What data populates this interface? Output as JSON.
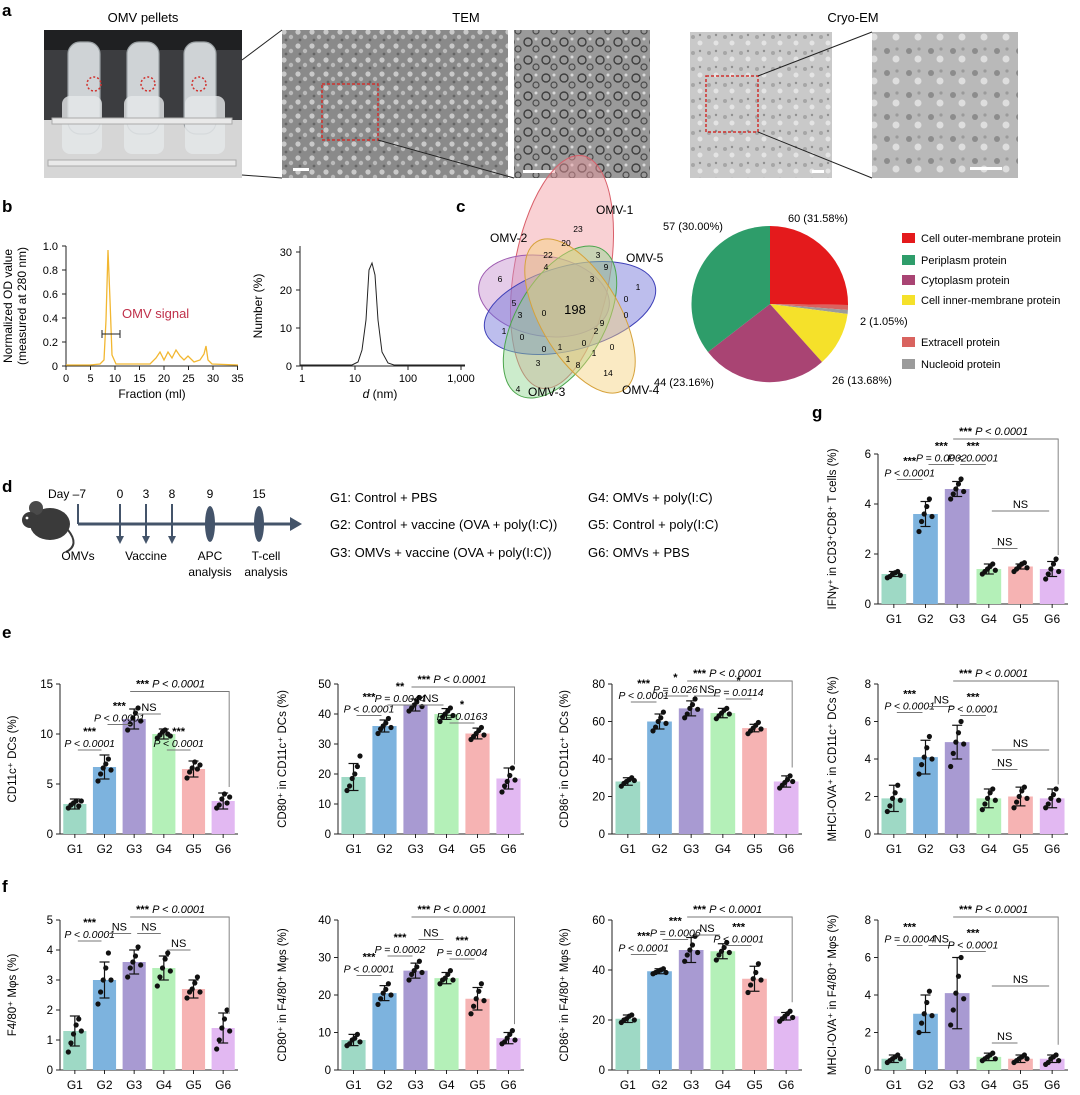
{
  "panel_letters": [
    "a",
    "b",
    "c",
    "d",
    "e",
    "f",
    "g"
  ],
  "panel_a": {
    "titles": [
      "OMV pellets",
      "TEM",
      "Cryo-EM"
    ]
  },
  "panel_b": {
    "left": {
      "ylabel1": "Normalized OD value",
      "ylabel2": "(measured at 280 nm)",
      "xlabel": "Fraction (ml)",
      "yticks": [
        "0",
        "0.2",
        "0.4",
        "0.6",
        "0.8",
        "1.0"
      ],
      "xticks": [
        "0",
        "5",
        "10",
        "15",
        "20",
        "25",
        "30",
        "35"
      ],
      "annotation": "OMV signal"
    },
    "right": {
      "ylabel": "Number (%)",
      "xlabel_var": "d",
      "xlabel_unit": " (nm)",
      "yticks": [
        "0",
        "10",
        "20",
        "30"
      ],
      "xticks": [
        "1",
        "10",
        "100",
        "1,000"
      ]
    }
  },
  "panel_c": {
    "venn": {
      "sets": [
        "OMV-1",
        "OMV-2",
        "OMV-3",
        "OMV-4",
        "OMV-5"
      ],
      "core": "198",
      "numbers": [
        "23",
        "6",
        "4",
        "14",
        "1",
        "20",
        "22",
        "4",
        "3",
        "9",
        "3",
        "0",
        "5",
        "3",
        "0",
        "1",
        "0",
        "3",
        "1",
        "8",
        "0",
        "2",
        "9",
        "0",
        "0",
        "1",
        "0",
        "1"
      ]
    },
    "pie_labels": [
      "60 (31.58%)",
      "57 (30.00%)",
      "44 (23.16%)",
      "26 (13.68%)",
      "2 (1.05%)"
    ],
    "legend": [
      {
        "label": "Cell outer-membrane protein",
        "color": "#e41a1c"
      },
      {
        "label": "Periplasm protein",
        "color": "#2e9d6a"
      },
      {
        "label": "Cytoplasm protein",
        "color": "#a94473"
      },
      {
        "label": "Cell inner-membrane protein",
        "color": "#f5e12a"
      },
      {
        "label": "Extracell protein",
        "color": "#d9635f"
      },
      {
        "label": "Nucleoid protein",
        "color": "#9b9b9b"
      }
    ]
  },
  "panel_d": {
    "timeline_days": [
      "Day –7",
      "0",
      "3",
      "8",
      "9",
      "15"
    ],
    "timeline_labels": [
      "OMVs",
      "Vaccine",
      "APC",
      "analysis",
      "T-cell",
      "analysis"
    ],
    "groups": [
      "G1: Control + PBS",
      "G2: Control + vaccine (OVA + poly(I:C))",
      "G3: OMVs + vaccine (OVA + poly(I:C))",
      "G4: OMVs + poly(I:C)",
      "G5: Control + poly(I:C)",
      "G6: OMVs + PBS"
    ]
  },
  "chart_data": [
    {
      "id": "e1",
      "type": "bar",
      "categories": [
        "G1",
        "G2",
        "G3",
        "G4",
        "G5",
        "G6"
      ],
      "values": [
        3.0,
        6.7,
        11.5,
        10.0,
        6.5,
        3.3
      ],
      "errors": [
        0.5,
        1.2,
        1.0,
        0.5,
        0.8,
        0.8
      ],
      "points": [
        [
          2.6,
          2.9,
          3.1,
          3.3,
          2.8,
          3.3
        ],
        [
          5.3,
          6.0,
          6.6,
          7.0,
          7.5,
          6.4
        ],
        [
          10.4,
          11.0,
          11.6,
          12.1,
          12.6,
          11.3
        ],
        [
          9.6,
          9.9,
          10.2,
          10.4,
          10.0,
          9.8
        ],
        [
          5.6,
          6.2,
          6.6,
          7.2,
          6.5,
          6.9
        ],
        [
          2.6,
          2.9,
          3.5,
          4.0,
          3.1,
          3.7
        ]
      ],
      "ylabel": "CD11c⁺ DCs (%)",
      "ylim": [
        0,
        15
      ],
      "yticks": [
        "0",
        "5",
        "10",
        "15"
      ],
      "annotations": [
        "***",
        "P < 0.0001",
        "***",
        "P < 0.0001",
        "NS",
        "***",
        "P < 0.0001",
        "***",
        "P < 0.0001"
      ]
    },
    {
      "id": "e2",
      "type": "bar",
      "categories": [
        "G1",
        "G2",
        "G3",
        "G4",
        "G5",
        "G6"
      ],
      "values": [
        19.0,
        36.0,
        43.0,
        40.0,
        33.5,
        18.5
      ],
      "errors": [
        4.5,
        2.0,
        2.0,
        1.8,
        1.8,
        3.5
      ],
      "points": [
        [
          14.5,
          16.0,
          18.5,
          20.0,
          22.5,
          26.0
        ],
        [
          33.5,
          35.0,
          36.0,
          37.0,
          38.5,
          35.5
        ],
        [
          41.0,
          42.0,
          43.0,
          44.0,
          45.5,
          42.5
        ],
        [
          37.5,
          39.0,
          40.0,
          41.0,
          42.0,
          39.5
        ],
        [
          31.5,
          32.5,
          33.5,
          34.5,
          35.5,
          33.0
        ],
        [
          14.0,
          16.0,
          17.5,
          19.5,
          22.0,
          18.0
        ]
      ],
      "ylabel": "CD80⁺ in CD11c⁺ DCs (%)",
      "ylim": [
        0,
        50
      ],
      "yticks": [
        "0",
        "10",
        "20",
        "30",
        "40",
        "50"
      ],
      "annotations": [
        "***",
        "P < 0.0001",
        "**",
        "P = 0.0044",
        "NS",
        "*",
        "P = 0.0163",
        "***",
        "P < 0.0001"
      ]
    },
    {
      "id": "e3",
      "type": "bar",
      "categories": [
        "G1",
        "G2",
        "G3",
        "G4",
        "G5",
        "G6"
      ],
      "values": [
        28.0,
        60.0,
        67.0,
        64.5,
        56.5,
        28.0
      ],
      "errors": [
        2.0,
        4.0,
        4.0,
        2.5,
        2.0,
        3.0
      ],
      "points": [
        [
          25.5,
          27.0,
          28.0,
          29.0,
          30.0,
          28.5
        ],
        [
          55.0,
          57.0,
          60.0,
          62.0,
          65.0,
          59.0
        ],
        [
          62.0,
          64.0,
          67.0,
          69.0,
          72.0,
          66.5
        ],
        [
          61.5,
          63.0,
          64.5,
          66.0,
          67.0,
          64.0
        ],
        [
          53.5,
          55.0,
          56.5,
          58.0,
          59.5,
          56.0
        ],
        [
          24.5,
          26.0,
          27.5,
          29.0,
          31.0,
          28.0
        ]
      ],
      "ylabel": "CD86⁺ in CD11c⁺ DCs (%)",
      "ylim": [
        0,
        80
      ],
      "yticks": [
        "0",
        "20",
        "40",
        "60",
        "80"
      ],
      "annotations": [
        "***",
        "P < 0.0001",
        "*",
        "P = 0.026",
        "NS",
        "*",
        "P = 0.0114",
        "***",
        "P < 0.0001"
      ]
    },
    {
      "id": "e4",
      "type": "bar",
      "categories": [
        "G1",
        "G2",
        "G3",
        "G4",
        "G5",
        "G6"
      ],
      "values": [
        1.9,
        4.1,
        4.9,
        1.9,
        2.0,
        1.9
      ],
      "errors": [
        0.7,
        0.9,
        0.9,
        0.5,
        0.5,
        0.5
      ],
      "points": [
        [
          1.2,
          1.5,
          1.9,
          2.2,
          2.6,
          1.8
        ],
        [
          3.2,
          3.7,
          4.1,
          4.6,
          5.2,
          4.0
        ],
        [
          3.6,
          4.3,
          4.9,
          5.4,
          6.0,
          4.8
        ],
        [
          1.3,
          1.6,
          1.9,
          2.2,
          2.4,
          1.8
        ],
        [
          1.4,
          1.7,
          2.0,
          2.3,
          2.5,
          1.9
        ],
        [
          1.4,
          1.6,
          1.9,
          2.1,
          2.4,
          1.8
        ]
      ],
      "ylabel": "MHCI-OVA⁺ in CD11c⁺ DCs (%)",
      "ylim": [
        0,
        8
      ],
      "yticks": [
        "0",
        "2",
        "4",
        "6",
        "8"
      ],
      "annotations": [
        "***",
        "P < 0.0001",
        "NS",
        "***",
        "P < 0.0001",
        "NS",
        "NS",
        "***",
        "P < 0.0001"
      ]
    },
    {
      "id": "f1",
      "type": "bar",
      "categories": [
        "G1",
        "G2",
        "G3",
        "G4",
        "G5",
        "G6"
      ],
      "values": [
        1.3,
        3.0,
        3.6,
        3.4,
        2.7,
        1.4
      ],
      "errors": [
        0.5,
        0.6,
        0.4,
        0.4,
        0.3,
        0.5
      ],
      "points": [
        [
          0.6,
          0.9,
          1.2,
          1.5,
          1.7,
          1.3
        ],
        [
          2.2,
          2.6,
          3.0,
          3.4,
          3.9,
          3.0
        ],
        [
          3.1,
          3.4,
          3.6,
          3.8,
          4.1,
          3.5
        ],
        [
          2.8,
          3.1,
          3.4,
          3.7,
          3.9,
          3.3
        ],
        [
          2.4,
          2.6,
          2.7,
          2.9,
          3.1,
          2.6
        ],
        [
          0.7,
          1.0,
          1.4,
          1.7,
          2.0,
          1.3
        ]
      ],
      "ylabel": "F4/80⁺ Mφs (%)",
      "ylim": [
        0,
        5
      ],
      "yticks": [
        "0",
        "1",
        "2",
        "3",
        "4",
        "5"
      ],
      "annotations": [
        "***",
        "P < 0.0001",
        "NS",
        "NS",
        "NS",
        "***",
        "P < 0.0001"
      ]
    },
    {
      "id": "f2",
      "type": "bar",
      "categories": [
        "G1",
        "G2",
        "G3",
        "G4",
        "G5",
        "G6"
      ],
      "values": [
        8.0,
        20.5,
        26.5,
        24.5,
        19.0,
        8.5
      ],
      "errors": [
        1.5,
        2.0,
        2.0,
        1.5,
        3.0,
        1.5
      ],
      "points": [
        [
          6.5,
          7.0,
          8.0,
          8.5,
          9.5,
          7.5
        ],
        [
          17.5,
          19.0,
          20.5,
          21.5,
          23.0,
          20.0
        ],
        [
          24.0,
          25.5,
          26.5,
          27.5,
          29.0,
          26.0
        ],
        [
          23.0,
          24.0,
          24.5,
          25.5,
          26.5,
          24.0
        ],
        [
          15.0,
          17.0,
          19.0,
          21.0,
          23.0,
          18.5
        ],
        [
          7.0,
          7.5,
          8.5,
          9.5,
          10.5,
          8.0
        ]
      ],
      "ylabel": "CD80⁺ in F4/80⁺ Mφs (%)",
      "ylim": [
        0,
        40
      ],
      "yticks": [
        "0",
        "10",
        "20",
        "30",
        "40"
      ],
      "annotations": [
        "***",
        "P < 0.0001",
        "***",
        "P = 0.0002",
        "NS",
        "***",
        "P = 0.0004",
        "***",
        "P < 0.0001"
      ]
    },
    {
      "id": "f3",
      "type": "bar",
      "categories": [
        "G1",
        "G2",
        "G3",
        "G4",
        "G5",
        "G6"
      ],
      "values": [
        20.5,
        39.5,
        48.0,
        47.5,
        36.5,
        21.5
      ],
      "errors": [
        1.5,
        1.0,
        5.0,
        3.0,
        5.0,
        1.5
      ],
      "points": [
        [
          19.0,
          20.0,
          20.5,
          21.5,
          22.0,
          20.0
        ],
        [
          38.5,
          39.0,
          39.5,
          40.0,
          40.5,
          39.0
        ],
        [
          43.5,
          46.0,
          48.0,
          50.0,
          53.5,
          47.0
        ],
        [
          44.0,
          46.0,
          47.5,
          49.0,
          51.0,
          47.0
        ],
        [
          31.0,
          34.0,
          36.5,
          39.0,
          42.5,
          36.0
        ],
        [
          19.5,
          20.5,
          21.5,
          22.5,
          23.5,
          21.0
        ]
      ],
      "ylabel": "CD86⁺ in F4/80⁺ Mφs (%)",
      "ylim": [
        0,
        60
      ],
      "yticks": [
        "0",
        "20",
        "40",
        "60"
      ],
      "annotations": [
        "***",
        "P < 0.0001",
        "***",
        "P = 0.0006",
        "NS",
        "***",
        "P < 0.0001",
        "***",
        "P < 0.0001"
      ]
    },
    {
      "id": "f4",
      "type": "bar",
      "categories": [
        "G1",
        "G2",
        "G3",
        "G4",
        "G5",
        "G6"
      ],
      "values": [
        0.6,
        3.0,
        4.1,
        0.7,
        0.6,
        0.6
      ],
      "errors": [
        0.2,
        1.0,
        1.9,
        0.2,
        0.2,
        0.2
      ],
      "points": [
        [
          0.4,
          0.5,
          0.6,
          0.7,
          0.8,
          0.6
        ],
        [
          2.0,
          2.5,
          3.0,
          3.6,
          4.2,
          2.9
        ],
        [
          2.4,
          3.2,
          4.1,
          5.0,
          6.0,
          3.8
        ],
        [
          0.5,
          0.6,
          0.7,
          0.8,
          0.9,
          0.6
        ],
        [
          0.4,
          0.5,
          0.6,
          0.7,
          0.8,
          0.6
        ],
        [
          0.3,
          0.4,
          0.6,
          0.7,
          0.8,
          0.5
        ]
      ],
      "ylabel": "MHCI-OVA⁺ in F4/80⁺ Mφs (%)",
      "ylim": [
        0,
        8
      ],
      "yticks": [
        "0",
        "2",
        "4",
        "6",
        "8"
      ],
      "annotations": [
        "***",
        "P = 0.0004",
        "NS",
        "***",
        "P < 0.0001",
        "NS",
        "NS",
        "***",
        "P < 0.0001"
      ]
    },
    {
      "id": "g",
      "type": "bar",
      "categories": [
        "G1",
        "G2",
        "G3",
        "G4",
        "G5",
        "G6"
      ],
      "values": [
        1.2,
        3.6,
        4.6,
        1.4,
        1.5,
        1.4
      ],
      "errors": [
        0.1,
        0.5,
        0.3,
        0.2,
        0.1,
        0.3
      ],
      "points": [
        [
          1.05,
          1.1,
          1.2,
          1.25,
          1.3,
          1.15
        ],
        [
          2.9,
          3.3,
          3.6,
          3.9,
          4.2,
          3.5
        ],
        [
          4.2,
          4.4,
          4.6,
          4.8,
          5.0,
          4.5
        ],
        [
          1.2,
          1.3,
          1.4,
          1.5,
          1.6,
          1.35
        ],
        [
          1.3,
          1.4,
          1.5,
          1.6,
          1.65,
          1.45
        ],
        [
          1.0,
          1.2,
          1.4,
          1.6,
          1.8,
          1.3
        ]
      ],
      "ylabel": "IFNγ⁺ in CD3⁺CD8⁺ T cells (%)",
      "ylim": [
        0,
        6
      ],
      "yticks": [
        "0",
        "2",
        "4",
        "6"
      ],
      "annotations": [
        "***",
        "P < 0.0001",
        "***",
        "P = 0.0002",
        "***",
        "P < 0.0001",
        "NS",
        "NS",
        "***",
        "P < 0.0001"
      ]
    }
  ],
  "bar_colors": [
    "#9ed9c5",
    "#7db3de",
    "#a89ad2",
    "#b4f0b8",
    "#f6b3b3",
    "#e2b8f2"
  ]
}
